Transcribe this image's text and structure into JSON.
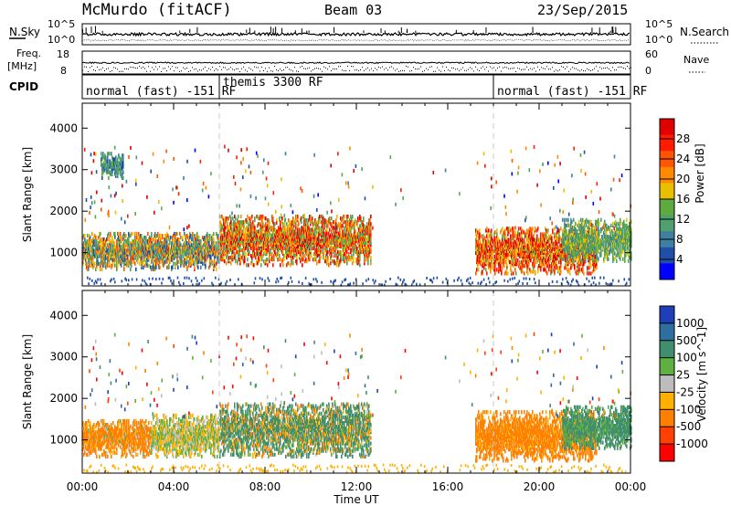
{
  "header": {
    "station": "McMurdo (fitACF)",
    "beam": "Beam 03",
    "date": "23/Sep/2015"
  },
  "nsky_panel": {
    "left_label": "N.Sky",
    "right_label": "N.Search",
    "y_ticks_left": [
      "10^5",
      "10^0"
    ],
    "y_ticks_right": [
      "10^5",
      "10^0"
    ]
  },
  "freq_panel": {
    "left_label_1": "Freq.",
    "left_label_2": "[MHz]",
    "right_label": "Nave",
    "y_ticks_left": [
      "18",
      "8"
    ],
    "y_ticks_right": [
      "60",
      "0"
    ]
  },
  "cpid_panel": {
    "label": "CPID",
    "segments": [
      {
        "label": "normal (fast) -151 RF",
        "start_h": 0,
        "end_h": 6
      },
      {
        "label": "themis 3300 RF",
        "start_h": 6,
        "end_h": 18
      },
      {
        "label": "normal (fast) -151 RF",
        "start_h": 18,
        "end_h": 24
      }
    ]
  },
  "colors": {
    "power": [
      "#0000ff",
      "#1f4fa8",
      "#3f7fa0",
      "#4f9f6f",
      "#5faa3f",
      "#e8c000",
      "#ff8a00",
      "#ff5500",
      "#ff1a00",
      "#e00000"
    ],
    "velocity": [
      "#1f3fb8",
      "#2f6f9f",
      "#3f8f6f",
      "#5fb040",
      "#bdbdbd",
      "#ffb000",
      "#ff8000",
      "#ff4000",
      "#ff0000"
    ]
  },
  "chart_data": [
    {
      "type": "heatmap",
      "name": "power",
      "ylabel": "Slant Range [km]",
      "colorbar_label": "Power [dB]",
      "colorbar_ticks": [
        "28",
        "24",
        "20",
        "16",
        "12",
        "8",
        "4"
      ],
      "ylim": [
        200,
        4600
      ],
      "y_ticks": [
        "4000",
        "3000",
        "2000",
        "1000"
      ],
      "xlim": [
        0,
        24
      ],
      "scatter_regions": [
        {
          "t0": 0.0,
          "t1": 6.0,
          "r0": 600,
          "r1": 1500,
          "pmin": 4,
          "pmax": 26
        },
        {
          "t0": 6.0,
          "t1": 12.6,
          "r0": 700,
          "r1": 1900,
          "pmin": 10,
          "pmax": 32
        },
        {
          "t0": 17.2,
          "t1": 22.5,
          "r0": 500,
          "r1": 1600,
          "pmin": 14,
          "pmax": 32
        },
        {
          "t0": 21.0,
          "t1": 24.0,
          "r0": 800,
          "r1": 1800,
          "pmin": 8,
          "pmax": 18
        },
        {
          "t0": 0.8,
          "t1": 1.8,
          "r0": 2800,
          "r1": 3400,
          "pmin": 4,
          "pmax": 16
        }
      ]
    },
    {
      "type": "heatmap",
      "name": "velocity",
      "ylabel": "Slant Range [km]",
      "colorbar_label": "Velocity [m s^-1]",
      "colorbar_ticks": [
        "1000",
        "500",
        "100",
        "25",
        "-25",
        "-100",
        "-500",
        "-1000"
      ],
      "ylim": [
        200,
        4600
      ],
      "y_ticks": [
        "4000",
        "3000",
        "2000",
        "1000"
      ],
      "xlim": [
        0,
        24
      ],
      "scatter_regions": [
        {
          "t0": 0.0,
          "t1": 3.0,
          "r0": 600,
          "r1": 1500,
          "vmin": -500,
          "vmax": 50
        },
        {
          "t0": 3.0,
          "t1": 6.0,
          "r0": 600,
          "r1": 1600,
          "vmin": -100,
          "vmax": 100
        },
        {
          "t0": 6.0,
          "t1": 12.6,
          "r0": 600,
          "r1": 1900,
          "vmin": -200,
          "vmax": 500
        },
        {
          "t0": 17.2,
          "t1": 22.5,
          "r0": 500,
          "r1": 1700,
          "vmin": -500,
          "vmax": -25
        },
        {
          "t0": 21.0,
          "t1": 24.0,
          "r0": 800,
          "r1": 1800,
          "vmin": 25,
          "vmax": 300
        }
      ]
    }
  ],
  "x_axis": {
    "label": "Time UT",
    "ticks": [
      "00:00",
      "04:00",
      "08:00",
      "12:00",
      "16:00",
      "20:00",
      "00:00"
    ]
  }
}
